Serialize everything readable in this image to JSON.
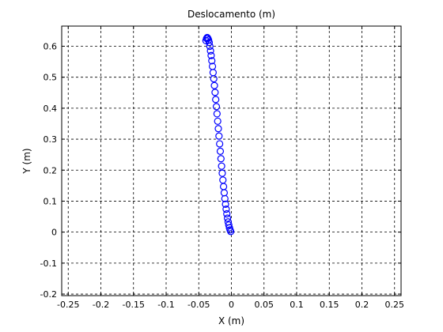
{
  "chart_data": {
    "type": "scatter",
    "title": "Deslocamento (m)",
    "xlabel": "X (m)",
    "ylabel": "Y (m)",
    "xlim": [
      -0.26,
      0.26
    ],
    "ylim": [
      -0.205,
      0.665
    ],
    "xticks": [
      -0.25,
      -0.2,
      -0.15,
      -0.1,
      -0.05,
      0,
      0.05,
      0.1,
      0.15,
      0.2,
      0.25
    ],
    "xtick_labels": [
      "-0.25",
      "-0.2",
      "-0.15",
      "-0.1",
      "-0.05",
      "0",
      "0.05",
      "0.1",
      "0.15",
      "0.2",
      "0.25"
    ],
    "yticks": [
      -0.2,
      -0.1,
      0,
      0.1,
      0.2,
      0.3,
      0.4,
      0.5,
      0.6
    ],
    "ytick_labels": [
      "-0.2",
      "-0.1",
      "0",
      "0.1",
      "0.2",
      "0.3",
      "0.4",
      "0.5",
      "0.6"
    ],
    "grid": true,
    "marker": "circle",
    "color": "#0000ff",
    "series": [
      {
        "x": [
          -0.039,
          -0.038,
          -0.037,
          -0.036,
          -0.035,
          -0.034,
          -0.033,
          -0.032,
          -0.031,
          -0.03,
          -0.029,
          -0.028,
          -0.027,
          -0.026,
          -0.025,
          -0.024,
          -0.023,
          -0.022,
          -0.021,
          -0.02,
          -0.019,
          -0.018,
          -0.017,
          -0.016,
          -0.015,
          -0.014,
          -0.013,
          -0.012,
          -0.011,
          -0.01,
          -0.009,
          -0.008,
          -0.007,
          -0.006,
          -0.005,
          -0.004,
          -0.003,
          -0.002,
          -0.001
        ],
        "y": [
          0.618,
          0.625,
          0.628,
          0.625,
          0.62,
          0.612,
          0.6,
          0.585,
          0.57,
          0.553,
          0.535,
          0.515,
          0.495,
          0.473,
          0.451,
          0.428,
          0.405,
          0.382,
          0.358,
          0.334,
          0.31,
          0.285,
          0.261,
          0.237,
          0.213,
          0.19,
          0.168,
          0.147,
          0.127,
          0.108,
          0.09,
          0.074,
          0.059,
          0.045,
          0.033,
          0.023,
          0.014,
          0.007,
          0.002
        ]
      }
    ]
  }
}
